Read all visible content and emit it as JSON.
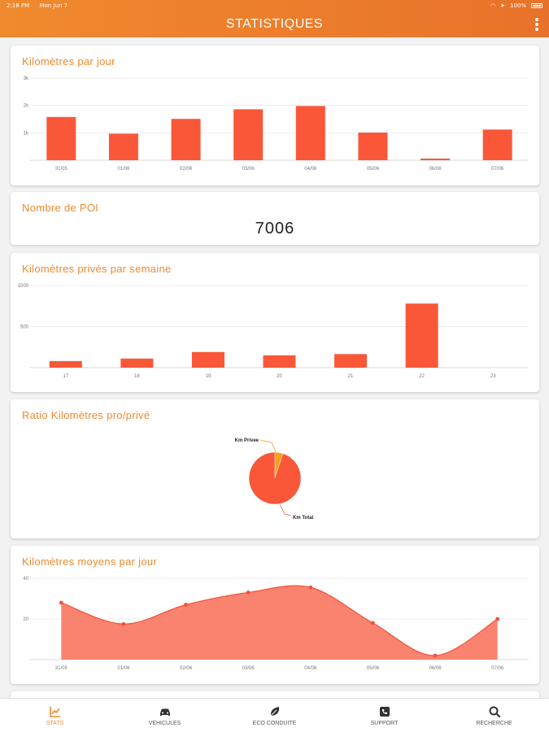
{
  "status_bar": {
    "time": "2:18 PM",
    "date": "Mon Jun 7",
    "battery": "100%"
  },
  "header": {
    "title": "STATISTIQUES"
  },
  "colors": {
    "accent": "#f08a2e",
    "bar": "#fa5739",
    "area": "#fa7560"
  },
  "cards": {
    "km_per_day": {
      "title": "Kilomètres par jour"
    },
    "poi": {
      "title": "Nombre de POI",
      "value": "7006"
    },
    "private_km_week": {
      "title": "Kilomètres privés par semaine"
    },
    "ratio": {
      "title": "Ratio Kilomètres pro/privé"
    },
    "avg_km_day": {
      "title": "Kilomètres moyens par jour"
    }
  },
  "chart_data": [
    {
      "type": "bar",
      "title": "Kilomètres par jour",
      "categories": [
        "31/05",
        "01/06",
        "02/06",
        "03/06",
        "04/06",
        "05/06",
        "06/06",
        "07/06"
      ],
      "values": [
        1580,
        970,
        1510,
        1860,
        1980,
        1010,
        60,
        1120
      ],
      "yticks": [
        "1k",
        "2k",
        "3k"
      ],
      "ylim": [
        0,
        3000
      ]
    },
    {
      "type": "bar",
      "title": "Kilomètres privés par semaine",
      "categories": [
        "17",
        "18",
        "19",
        "20",
        "21",
        "22",
        "23"
      ],
      "values": [
        80,
        110,
        190,
        150,
        165,
        780,
        0
      ],
      "yticks": [
        "500",
        "1000"
      ],
      "ylim": [
        0,
        1000
      ]
    },
    {
      "type": "pie",
      "title": "Ratio Kilomètres pro/privé",
      "labels": [
        "Km Privee",
        "Km Total"
      ],
      "values": [
        5,
        95
      ],
      "colors": [
        "#f5a11a",
        "#fa5739"
      ]
    },
    {
      "type": "area",
      "title": "Kilomètres moyens par jour",
      "categories": [
        "31/05",
        "01/06",
        "02/06",
        "03/06",
        "04/06",
        "05/06",
        "06/06",
        "07/06"
      ],
      "values": [
        28,
        17.5,
        27,
        33,
        35.5,
        18,
        2,
        20
      ],
      "yticks": [
        "20",
        "40"
      ],
      "ylim": [
        0,
        40
      ]
    }
  ],
  "tabs": [
    {
      "label": "STATS",
      "icon": "stats-icon"
    },
    {
      "label": "VEHICULES",
      "icon": "car-icon"
    },
    {
      "label": "ECO CONDUITE",
      "icon": "leaf-icon"
    },
    {
      "label": "SUPPORT",
      "icon": "support-icon"
    },
    {
      "label": "RECHERCHE",
      "icon": "search-icon"
    }
  ]
}
